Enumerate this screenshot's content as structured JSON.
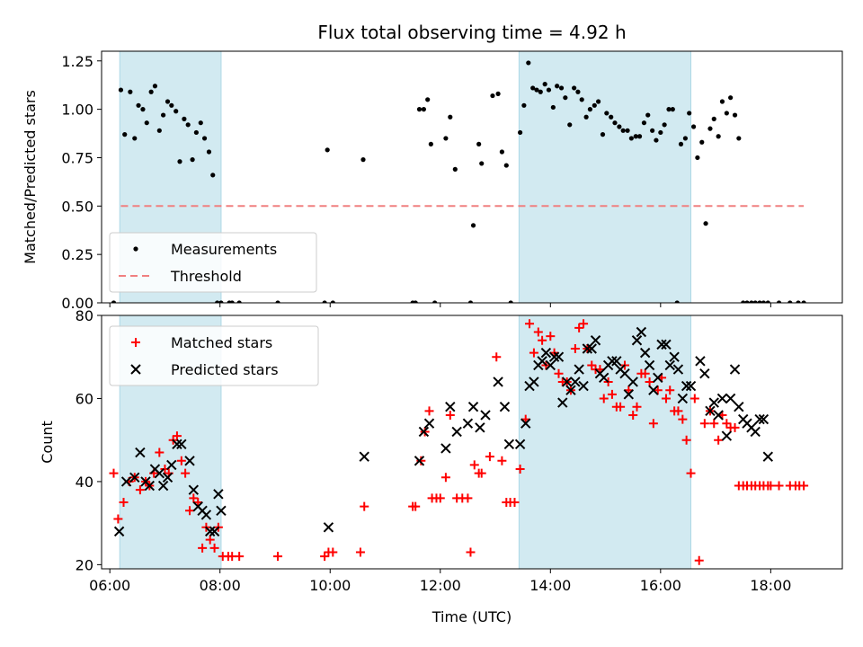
{
  "title": "Flux total observing time = 4.92 h",
  "colors": {
    "band": "#add8e6",
    "measurement": "#000000",
    "threshold": "#f08080",
    "matched": "#ff0000",
    "predicted": "#000000"
  },
  "chart_data": [
    {
      "type": "scatter",
      "ylabel": "Matched/Predicted stars",
      "xlim": [
        5.85,
        19.3
      ],
      "ylim": [
        0,
        1.3
      ],
      "yticks": [
        0.0,
        0.25,
        0.5,
        0.75,
        1.0,
        1.25
      ],
      "ytick_labels": [
        "0.00",
        "0.25",
        "0.50",
        "0.75",
        "1.00",
        "1.25"
      ],
      "shaded_bands": [
        [
          6.18,
          8.02
        ],
        [
          13.43,
          16.55
        ]
      ],
      "grid": false,
      "legend": "lower-left",
      "series": [
        {
          "name": "Measurements",
          "marker": "dot",
          "x": [
            6.07,
            6.2,
            6.27,
            6.37,
            6.45,
            6.52,
            6.6,
            6.67,
            6.75,
            6.82,
            6.9,
            6.97,
            7.05,
            7.12,
            7.2,
            7.27,
            7.35,
            7.42,
            7.5,
            7.57,
            7.65,
            7.72,
            7.8,
            7.87,
            7.95,
            8.02,
            8.17,
            8.22,
            8.35,
            9.05,
            9.9,
            9.95,
            10.05,
            10.6,
            11.5,
            11.55,
            11.62,
            11.7,
            11.77,
            11.83,
            11.9,
            12.1,
            12.18,
            12.27,
            12.55,
            12.6,
            12.7,
            12.75,
            12.95,
            13.05,
            13.12,
            13.2,
            13.28,
            13.45,
            13.52,
            13.6,
            13.68,
            13.75,
            13.82,
            13.9,
            13.97,
            14.05,
            14.12,
            14.2,
            14.27,
            14.35,
            14.43,
            14.5,
            14.57,
            14.65,
            14.72,
            14.8,
            14.87,
            14.95,
            15.02,
            15.1,
            15.17,
            15.25,
            15.32,
            15.4,
            15.47,
            15.55,
            15.62,
            15.7,
            15.77,
            15.85,
            15.92,
            16.0,
            16.07,
            16.15,
            16.22,
            16.3,
            16.37,
            16.45,
            16.52,
            16.6,
            16.67,
            16.75,
            16.82,
            16.9,
            16.97,
            17.05,
            17.12,
            17.2,
            17.27,
            17.35,
            17.42,
            17.5,
            17.57,
            17.65,
            17.72,
            17.8,
            17.87,
            17.95,
            18.15,
            18.35,
            18.5,
            18.6
          ],
          "y": [
            0.0,
            1.1,
            0.87,
            1.09,
            0.85,
            1.02,
            1.0,
            0.93,
            1.09,
            1.12,
            0.89,
            0.97,
            1.04,
            1.02,
            0.99,
            0.73,
            0.95,
            0.92,
            0.74,
            0.88,
            0.93,
            0.85,
            0.78,
            0.66,
            0.0,
            0.0,
            0.0,
            0.0,
            0.0,
            0.0,
            0.0,
            0.79,
            0.0,
            0.74,
            0.0,
            0.0,
            1.0,
            1.0,
            1.05,
            0.82,
            0.0,
            0.85,
            0.96,
            0.69,
            0.0,
            0.4,
            0.82,
            0.72,
            1.07,
            1.08,
            0.78,
            0.71,
            0.0,
            0.88,
            1.02,
            1.24,
            1.11,
            1.1,
            1.09,
            1.13,
            1.1,
            1.01,
            1.12,
            1.11,
            1.06,
            0.92,
            1.11,
            1.09,
            1.05,
            0.96,
            1.0,
            1.02,
            1.04,
            0.87,
            0.98,
            0.96,
            0.93,
            0.91,
            0.89,
            0.89,
            0.85,
            0.86,
            0.86,
            0.93,
            0.97,
            0.89,
            0.84,
            0.88,
            0.92,
            1.0,
            1.0,
            0.0,
            0.82,
            0.85,
            0.98,
            0.91,
            0.75,
            0.83,
            0.41,
            0.9,
            0.95,
            0.86,
            1.04,
            0.98,
            1.06,
            0.97,
            0.85,
            0.0,
            0.0,
            0.0,
            0.0,
            0.0,
            0.0,
            0.0,
            0.0,
            0.0,
            0.0,
            0.0
          ]
        },
        {
          "name": "Threshold",
          "marker": "dashed-line",
          "x": [
            6.2,
            18.6
          ],
          "y": [
            0.5,
            0.5
          ]
        }
      ]
    },
    {
      "type": "scatter",
      "xlabel": "Time (UTC)",
      "ylabel": "Count",
      "xlim": [
        5.85,
        19.3
      ],
      "ylim": [
        19,
        80
      ],
      "yticks": [
        20,
        40,
        60,
        80
      ],
      "ytick_labels": [
        "20",
        "40",
        "60",
        "80"
      ],
      "xticks": [
        6,
        8,
        10,
        12,
        14,
        16,
        18
      ],
      "xtick_labels": [
        "06:00",
        "08:00",
        "10:00",
        "12:00",
        "14:00",
        "16:00",
        "18:00"
      ],
      "shaded_bands": [
        [
          6.18,
          8.02
        ],
        [
          13.43,
          16.55
        ]
      ],
      "grid": false,
      "legend": "upper-left",
      "series": [
        {
          "name": "Matched stars",
          "marker": "plus",
          "x": [
            6.07,
            6.15,
            6.25,
            6.35,
            6.45,
            6.55,
            6.65,
            6.72,
            6.8,
            6.9,
            7.0,
            7.07,
            7.15,
            7.22,
            7.3,
            7.37,
            7.45,
            7.52,
            7.6,
            7.68,
            7.75,
            7.82,
            7.9,
            7.97,
            8.05,
            8.15,
            8.22,
            8.35,
            9.05,
            9.9,
            9.97,
            10.05,
            10.55,
            10.62,
            11.5,
            11.55,
            11.65,
            11.72,
            11.8,
            11.85,
            11.93,
            12.0,
            12.1,
            12.18,
            12.3,
            12.4,
            12.5,
            12.55,
            12.62,
            12.7,
            12.75,
            12.9,
            13.02,
            13.12,
            13.2,
            13.27,
            13.35,
            13.45,
            13.55,
            13.62,
            13.7,
            13.78,
            13.85,
            13.92,
            14.0,
            14.07,
            14.15,
            14.22,
            14.3,
            14.37,
            14.45,
            14.52,
            14.6,
            14.67,
            14.75,
            14.82,
            14.9,
            14.97,
            15.05,
            15.12,
            15.2,
            15.27,
            15.35,
            15.42,
            15.5,
            15.57,
            15.65,
            15.72,
            15.8,
            15.87,
            15.95,
            16.02,
            16.1,
            16.17,
            16.25,
            16.32,
            16.4,
            16.47,
            16.55,
            16.62,
            16.7,
            16.8,
            16.9,
            16.97,
            17.05,
            17.12,
            17.2,
            17.27,
            17.35,
            17.42,
            17.5,
            17.57,
            17.65,
            17.72,
            17.8,
            17.87,
            17.95,
            18.0,
            18.15,
            18.35,
            18.45,
            18.52,
            18.6
          ],
          "y": [
            42,
            31,
            35,
            40,
            41,
            38,
            40,
            39,
            42,
            47,
            43,
            42,
            50,
            51,
            45,
            42,
            33,
            36,
            35,
            24,
            29,
            26,
            24,
            29,
            22,
            22,
            22,
            22,
            22,
            22,
            23,
            23,
            23,
            34,
            34,
            34,
            45,
            52,
            57,
            36,
            36,
            36,
            41,
            56,
            36,
            36,
            36,
            23,
            44,
            42,
            42,
            46,
            70,
            45,
            35,
            35,
            35,
            43,
            55,
            78,
            71,
            76,
            74,
            68,
            75,
            71,
            66,
            64,
            64,
            62,
            72,
            77,
            78,
            72,
            68,
            67,
            67,
            60,
            64,
            61,
            58,
            58,
            68,
            62,
            56,
            58,
            66,
            66,
            64,
            54,
            62,
            65,
            60,
            62,
            57,
            57,
            55,
            50,
            42,
            60,
            21,
            54,
            57,
            54,
            50,
            56,
            54,
            53,
            53,
            39,
            39,
            39,
            39,
            39,
            39,
            39,
            39,
            39,
            39,
            39,
            39,
            39,
            39
          ]
        },
        {
          "name": "Predicted stars",
          "marker": "x",
          "x": [
            6.17,
            6.3,
            6.45,
            6.55,
            6.65,
            6.72,
            6.82,
            6.9,
            6.97,
            7.05,
            7.12,
            7.22,
            7.3,
            7.45,
            7.52,
            7.6,
            7.68,
            7.75,
            7.82,
            7.9,
            7.97,
            8.02,
            9.97,
            10.62,
            11.62,
            11.7,
            11.8,
            12.1,
            12.18,
            12.3,
            12.5,
            12.6,
            12.72,
            12.82,
            13.05,
            13.17,
            13.25,
            13.45,
            13.55,
            13.62,
            13.7,
            13.78,
            13.85,
            13.92,
            14.0,
            14.07,
            14.15,
            14.22,
            14.3,
            14.37,
            14.45,
            14.52,
            14.6,
            14.67,
            14.75,
            14.82,
            14.9,
            14.97,
            15.05,
            15.12,
            15.2,
            15.27,
            15.35,
            15.42,
            15.5,
            15.57,
            15.65,
            15.72,
            15.8,
            15.87,
            15.95,
            16.02,
            16.1,
            16.17,
            16.25,
            16.32,
            16.4,
            16.47,
            16.55,
            16.72,
            16.8,
            16.9,
            16.97,
            17.05,
            17.12,
            17.2,
            17.27,
            17.35,
            17.42,
            17.5,
            17.57,
            17.65,
            17.72,
            17.8,
            17.87,
            17.95
          ],
          "y": [
            28,
            40,
            41,
            47,
            40,
            39,
            43,
            42,
            39,
            41,
            44,
            49,
            49,
            45,
            38,
            34,
            33,
            32,
            28,
            28,
            37,
            33,
            29,
            46,
            45,
            52,
            54,
            48,
            58,
            52,
            54,
            58,
            53,
            56,
            64,
            58,
            49,
            49,
            54,
            63,
            64,
            68,
            69,
            71,
            68,
            70,
            70,
            59,
            64,
            62,
            64,
            67,
            63,
            72,
            72,
            74,
            66,
            65,
            68,
            69,
            69,
            67,
            66,
            61,
            64,
            74,
            76,
            71,
            68,
            62,
            65,
            73,
            73,
            68,
            70,
            67,
            60,
            63,
            63,
            69,
            66,
            57,
            59,
            56,
            60,
            51,
            60,
            67,
            58,
            55,
            54,
            53,
            52,
            55,
            55,
            46
          ]
        }
      ]
    }
  ]
}
